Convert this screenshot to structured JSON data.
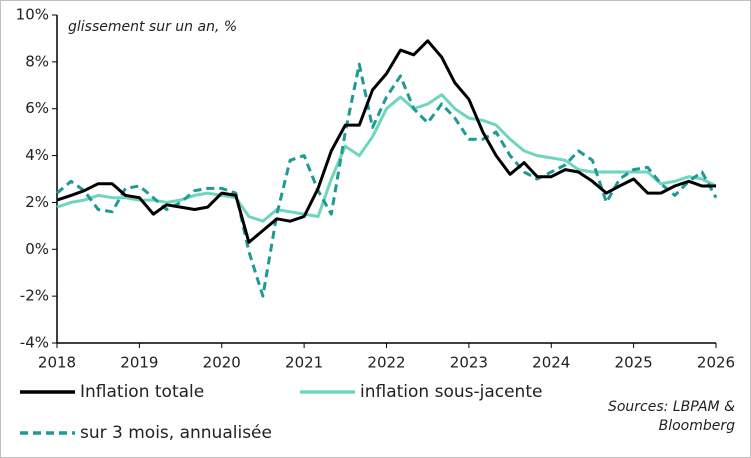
{
  "chart_data": {
    "type": "line",
    "annotation": "glissement sur un an, %",
    "source": [
      "Sources: LBPAM &",
      "Bloomberg"
    ],
    "x": [
      2018.0,
      2018.17,
      2018.33,
      2018.5,
      2018.67,
      2018.83,
      2019.0,
      2019.17,
      2019.33,
      2019.5,
      2019.67,
      2019.83,
      2020.0,
      2020.17,
      2020.33,
      2020.5,
      2020.67,
      2020.83,
      2021.0,
      2021.17,
      2021.33,
      2021.5,
      2021.67,
      2021.83,
      2022.0,
      2022.17,
      2022.33,
      2022.5,
      2022.67,
      2022.83,
      2023.0,
      2023.17,
      2023.33,
      2023.5,
      2023.67,
      2023.83,
      2024.0,
      2024.17,
      2024.33,
      2024.5,
      2024.67,
      2024.83,
      2025.0,
      2025.17,
      2025.33,
      2025.5,
      2025.67,
      2025.83,
      2026.0
    ],
    "series": [
      {
        "name": "Inflation totale",
        "color": "#000000",
        "style": "solid",
        "values": [
          2.1,
          2.3,
          2.5,
          2.8,
          2.8,
          2.3,
          2.2,
          1.5,
          1.9,
          1.8,
          1.7,
          1.8,
          2.4,
          2.3,
          0.3,
          0.8,
          1.3,
          1.2,
          1.4,
          2.6,
          4.2,
          5.3,
          5.3,
          6.8,
          7.5,
          8.5,
          8.3,
          8.9,
          8.2,
          7.1,
          6.4,
          5.0,
          4.0,
          3.2,
          3.7,
          3.1,
          3.1,
          3.4,
          3.3,
          2.9,
          2.4,
          2.7,
          3.0,
          2.4,
          2.4,
          2.7,
          2.9,
          2.7,
          2.7
        ]
      },
      {
        "name": "inflation sous-jacente",
        "color": "#6fd6bd",
        "style": "solid",
        "values": [
          1.8,
          2.0,
          2.1,
          2.3,
          2.2,
          2.2,
          2.1,
          2.1,
          2.0,
          2.1,
          2.3,
          2.4,
          2.3,
          2.2,
          1.4,
          1.2,
          1.7,
          1.6,
          1.5,
          1.4,
          3.0,
          4.4,
          4.0,
          4.8,
          6.0,
          6.5,
          6.0,
          6.2,
          6.6,
          6.0,
          5.6,
          5.5,
          5.3,
          4.7,
          4.2,
          4.0,
          3.9,
          3.8,
          3.4,
          3.3,
          3.3,
          3.3,
          3.3,
          3.3,
          2.8,
          2.9,
          3.1,
          3.0,
          2.7
        ]
      },
      {
        "name": "sur 3 mois, annualisée",
        "color": "#1d9a93",
        "style": "dashed",
        "values": [
          2.4,
          2.9,
          2.5,
          1.7,
          1.6,
          2.6,
          2.7,
          2.2,
          1.7,
          2.0,
          2.5,
          2.6,
          2.6,
          2.4,
          -0.1,
          -2.0,
          1.5,
          3.8,
          4.0,
          2.5,
          1.5,
          5.0,
          7.9,
          5.2,
          6.5,
          7.4,
          6.0,
          5.4,
          6.2,
          5.6,
          4.7,
          4.7,
          5.0,
          4.0,
          3.3,
          3.0,
          3.3,
          3.6,
          4.2,
          3.8,
          2.0,
          3.0,
          3.4,
          3.5,
          2.8,
          2.3,
          2.9,
          3.3,
          2.2
        ]
      }
    ],
    "xlim": [
      2018,
      2026
    ],
    "xticks": [
      2018,
      2019,
      2020,
      2021,
      2022,
      2023,
      2024,
      2025,
      2026
    ],
    "ylim": [
      -4,
      10
    ],
    "yticks": [
      {
        "value": -4,
        "label": "-4%"
      },
      {
        "value": -2,
        "label": "-2%"
      },
      {
        "value": 0,
        "label": "0%"
      },
      {
        "value": 2,
        "label": "2%"
      },
      {
        "value": 4,
        "label": "4%"
      },
      {
        "value": 6,
        "label": "6%"
      },
      {
        "value": 8,
        "label": "8%"
      },
      {
        "value": 10,
        "label": "10%"
      }
    ],
    "grid": false
  }
}
